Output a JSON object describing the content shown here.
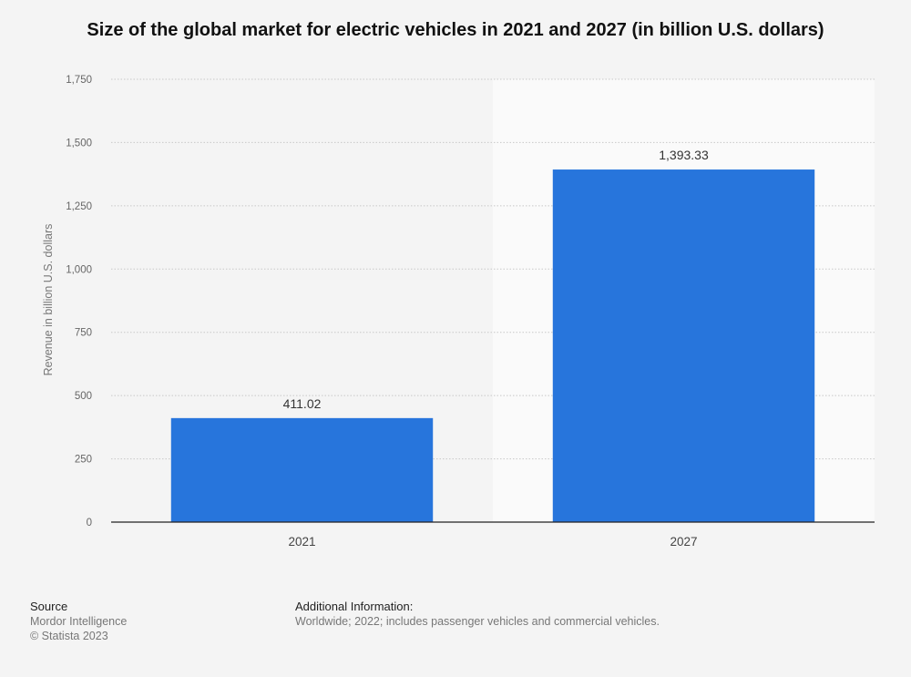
{
  "chart_data": {
    "type": "bar",
    "title": "Size of the global market for electric vehicles in 2021 and 2027 (in billion U.S. dollars)",
    "categories": [
      "2021",
      "2027"
    ],
    "values": [
      411.02,
      1393.33
    ],
    "data_labels": [
      "411.02",
      "1,393.33"
    ],
    "ylabel": "Revenue in billion U.S. dollars",
    "xlabel": "",
    "ylim": [
      0,
      1750
    ],
    "yticks": [
      0,
      250,
      500,
      750,
      1000,
      1250,
      1500,
      1750
    ],
    "ytick_labels": [
      "0",
      "250",
      "500",
      "750",
      "1,000",
      "1,250",
      "1,500",
      "1,750"
    ],
    "grid": true,
    "bar_color": "#2775dc",
    "highlight_band_color": "#fafafa",
    "background_color": "#f4f4f4"
  },
  "footer": {
    "source_heading": "Source",
    "source_lines": [
      "Mordor Intelligence",
      "© Statista 2023"
    ],
    "info_heading": "Additional Information:",
    "info_text": "Worldwide; 2022; includes passenger vehicles and commercial vehicles."
  }
}
